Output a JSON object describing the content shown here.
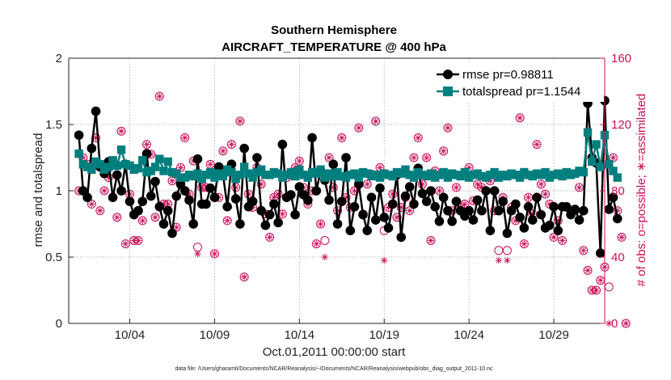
{
  "chart_data": {
    "type": "line",
    "title": "Southern Hemisphere",
    "subtitle": "AIRCRAFT_TEMPERATURE @ 400 hPa",
    "xlabel": "Oct.01,2011 00:00:00 start",
    "ylabel": "rmse and totalspread",
    "y2label": "# of obs: o=possible; ∗=assimilated",
    "footnote": "data file: /Users/gharamti/Documents/NCAR/Reanalysis/~/Documents/NCAR/Reanalysis/webpub/obs_diag_output_2011-10.nc",
    "xlim": [
      0.4,
      32.0
    ],
    "ylim": [
      0,
      2
    ],
    "y2lim": [
      0,
      160
    ],
    "xticks": [
      4,
      9,
      14,
      19,
      24,
      29
    ],
    "xticklabels": [
      "10/04",
      "10/09",
      "10/14",
      "10/19",
      "10/24",
      "10/29"
    ],
    "yticks": [
      0,
      0.5,
      1,
      1.5,
      2
    ],
    "yticklabels": [
      "0",
      "0.5",
      "1",
      "1.5",
      "2"
    ],
    "y2ticks": [
      0,
      40,
      80,
      120,
      160
    ],
    "y2ticklabels": [
      "0",
      "40",
      "80",
      "120",
      "160"
    ],
    "grid": true,
    "legend_location": "top-right",
    "colors": {
      "rmse": "#000000",
      "totalspread": "#007f7f",
      "obs": "#c8105a"
    },
    "series": [
      {
        "name": "rmse pr=0.98811",
        "marker": "circle",
        "values": [
          1.42,
          1.0,
          0.95,
          1.32,
          1.6,
          1.18,
          1.13,
          1.22,
          0.95,
          1.12,
          1.0,
          1.2,
          0.92,
          0.82,
          0.85,
          0.92,
          1.28,
          0.96,
          1.07,
          0.88,
          0.75,
          0.85,
          0.68,
          0.96,
          1.05,
          1.0,
          0.93,
          0.75,
          1.24,
          0.9,
          0.9,
          1.02,
          0.95,
          1.18,
          1.12,
          0.88,
          1.2,
          0.94,
          0.75,
          1.32,
          0.88,
          0.92,
          1.25,
          0.85,
          0.74,
          0.82,
          0.9,
          0.76,
          1.35,
          0.95,
          0.97,
          0.82,
          1.03,
          0.97,
          0.93,
          1.4,
          1.0,
          1.15,
          1.08,
          0.93,
          1.2,
          0.75,
          0.92,
          1.25,
          0.7,
          0.88,
          1.05,
          0.82,
          0.7,
          0.95,
          0.78,
          1.02,
          0.8,
          0.72,
          0.9,
          1.12,
          0.65,
          0.96,
          1.03,
          0.9,
          1.17,
          0.98,
          0.92,
          1.0,
          0.88,
          0.77,
          0.95,
          0.85,
          0.77,
          0.92,
          0.85,
          0.81,
          0.85,
          0.78,
          0.93,
          0.85,
          1.0,
          0.7,
          1.0,
          0.85,
          0.92,
          0.68,
          0.85,
          0.9,
          0.8,
          0.72,
          0.88,
          0.78,
          0.95,
          0.82,
          0.72,
          0.74,
          0.88,
          0.7,
          0.88,
          0.88,
          0.82,
          0.86,
          0.78,
          0.85,
          1.66,
          1.25,
          1.21,
          0.53,
          1.68,
          0.86,
          0.95,
          0.79
        ],
        "x_start": 1.0,
        "x_step": 0.25
      },
      {
        "name": "totalspread pr=1.1544",
        "marker": "square",
        "values": [
          1.28,
          1.2,
          1.18,
          1.16,
          1.22,
          1.2,
          1.16,
          1.18,
          1.23,
          1.19,
          1.31,
          1.2,
          1.19,
          1.16,
          1.17,
          1.23,
          1.14,
          1.15,
          1.18,
          1.24,
          1.15,
          1.22,
          1.14,
          1.13,
          1.1,
          1.1,
          1.12,
          1.11,
          1.13,
          1.09,
          1.12,
          1.14,
          1.1,
          1.13,
          1.11,
          1.16,
          1.14,
          1.09,
          1.12,
          1.18,
          1.13,
          1.1,
          1.14,
          1.16,
          1.12,
          1.12,
          1.14,
          1.13,
          1.1,
          1.12,
          1.14,
          1.11,
          1.16,
          1.12,
          1.1,
          1.14,
          1.13,
          1.16,
          1.1,
          1.13,
          1.11,
          1.14,
          1.11,
          1.1,
          1.12,
          1.13,
          1.1,
          1.14,
          1.13,
          1.11,
          1.12,
          1.1,
          1.13,
          1.12,
          1.11,
          1.14,
          1.13,
          1.16,
          1.12,
          1.1,
          1.14,
          1.12,
          1.11,
          1.13,
          1.1,
          1.12,
          1.14,
          1.1,
          1.13,
          1.12,
          1.11,
          1.14,
          1.1,
          1.12,
          1.13,
          1.11,
          1.1,
          1.12,
          1.14,
          1.1,
          1.12,
          1.11,
          1.13,
          1.12,
          1.1,
          1.14,
          1.12,
          1.11,
          1.13,
          1.12,
          1.14,
          1.1,
          1.12,
          1.13,
          1.11,
          1.14,
          1.12,
          1.13,
          1.15,
          1.14,
          1.44,
          1.22,
          1.35,
          1.18,
          1.42,
          1.2,
          1.15,
          1.1
        ],
        "x_start": 1.0,
        "x_step": 0.25
      }
    ],
    "obs_series": [
      {
        "name": "possible",
        "marker": "circle",
        "axis": "right",
        "values": [
          80,
          100,
          96,
          72,
          112,
          68,
          80,
          88,
          98,
          64,
          116,
          48,
          78,
          50,
          50,
          62,
          108,
          102,
          64,
          137,
          72,
          72,
          86,
          58,
          94,
          112,
          78,
          98,
          46,
          82,
          82,
          96,
          42,
          76,
          104,
          62,
          108,
          82,
          122,
          28,
          78,
          70,
          94,
          84,
          66,
          52,
          76,
          78,
          66,
          88,
          90,
          94,
          98,
          82,
          72,
          80,
          48,
          60,
          50,
          100,
          82,
          68,
          112,
          76,
          70,
          80,
          118,
          66,
          84,
          90,
          122,
          94,
          56,
          70,
          78,
          64,
          70,
          76,
          68,
          100,
          112,
          84,
          100,
          50,
          92,
          80,
          104,
          118,
          68,
          82,
          70,
          72,
          94,
          74,
          84,
          82,
          80,
          86,
          68,
          44,
          76,
          44,
          70,
          62,
          124,
          48,
          76,
          66,
          108,
          84,
          78,
          72,
          52,
          62,
          50,
          70,
          90,
          68,
          82,
          44,
          32,
          20,
          20,
          26,
          34,
          22,
          100,
          68,
          52,
          0
        ],
        "x_start": 1.0,
        "x_step": 0.25
      },
      {
        "name": "assimilated",
        "marker": "asterisk",
        "axis": "right",
        "values": [
          80,
          100,
          96,
          72,
          112,
          68,
          80,
          88,
          98,
          64,
          116,
          48,
          78,
          50,
          50,
          62,
          108,
          102,
          64,
          137,
          72,
          72,
          86,
          58,
          94,
          112,
          78,
          98,
          42,
          82,
          82,
          96,
          42,
          76,
          104,
          62,
          108,
          82,
          122,
          28,
          78,
          70,
          94,
          84,
          66,
          52,
          76,
          78,
          66,
          88,
          90,
          94,
          98,
          82,
          72,
          80,
          48,
          60,
          40,
          100,
          82,
          68,
          112,
          76,
          70,
          80,
          118,
          66,
          84,
          90,
          122,
          94,
          38,
          70,
          78,
          64,
          70,
          76,
          68,
          100,
          112,
          84,
          100,
          50,
          92,
          80,
          104,
          118,
          68,
          82,
          70,
          72,
          94,
          74,
          84,
          82,
          80,
          86,
          68,
          38,
          76,
          38,
          70,
          62,
          124,
          48,
          76,
          66,
          108,
          84,
          78,
          72,
          52,
          62,
          50,
          70,
          90,
          68,
          82,
          44,
          32,
          20,
          20,
          26,
          34,
          0,
          100,
          68,
          52,
          0
        ],
        "x_start": 1.0,
        "x_step": 0.25
      }
    ]
  }
}
